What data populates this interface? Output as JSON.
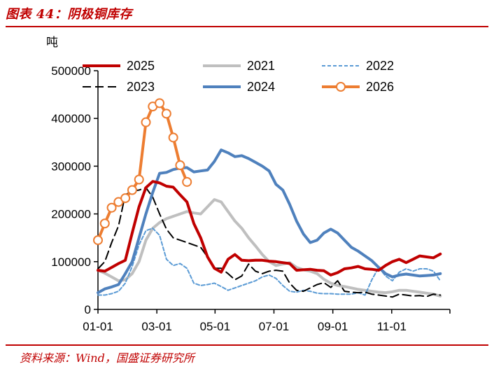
{
  "figure": {
    "title": "图表 44：阴极铜库存",
    "source": "资料来源：Wind，国盛证券研究所"
  },
  "chart_data": {
    "type": "line",
    "title": "阴极铜库存",
    "ylabel": "吨",
    "xlabel": "",
    "ylim": [
      0,
      500000
    ],
    "yticks": [
      0,
      100000,
      200000,
      300000,
      400000,
      500000
    ],
    "ytick_labels": [
      "0",
      "100000",
      "200000",
      "300000",
      "400000",
      "500000"
    ],
    "xlim": [
      0,
      51
    ],
    "xticks": [
      0,
      8.6,
      17.1,
      25.7,
      34.3,
      42.9,
      51.4
    ],
    "xtick_labels": [
      "01-01",
      "03-01",
      "05-01",
      "07-01",
      "09-01",
      "11-01",
      ""
    ],
    "legend_position": "top",
    "series": [
      {
        "name": "2025",
        "color": "#c00000",
        "style": "solid",
        "width": 4,
        "x": [
          0,
          1,
          2,
          3,
          4,
          5,
          6,
          7,
          8,
          9,
          10,
          11,
          12,
          13,
          14,
          15,
          16,
          17,
          18,
          19,
          20,
          21,
          22,
          23,
          24,
          25,
          26,
          27,
          28,
          29,
          30,
          31,
          32,
          33,
          34,
          35,
          36,
          37,
          38,
          39,
          40,
          41,
          42,
          43,
          44,
          45,
          46,
          47,
          48,
          49,
          50
        ],
        "y": [
          82000,
          80000,
          88000,
          96000,
          103000,
          160000,
          215000,
          255000,
          268000,
          265000,
          258000,
          256000,
          240000,
          225000,
          180000,
          150000,
          110000,
          86000,
          78000,
          105000,
          115000,
          103000,
          102000,
          103000,
          103000,
          101000,
          100000,
          98000,
          96000,
          82000,
          83000,
          84000,
          82000,
          81000,
          72000,
          77000,
          85000,
          87000,
          90000,
          85000,
          84000,
          82000,
          92000,
          100000,
          105000,
          98000,
          105000,
          112000,
          110000,
          108000,
          116000
        ]
      },
      {
        "name": "2021",
        "color": "#bfbfbf",
        "style": "solid",
        "width": 4,
        "x": [
          0,
          1,
          2,
          3,
          4,
          5,
          6,
          7,
          8,
          9,
          10,
          11,
          12,
          13,
          14,
          15,
          16,
          17,
          18,
          19,
          20,
          21,
          22,
          23,
          24,
          25,
          26,
          27,
          28,
          29,
          30,
          31,
          32,
          33,
          34,
          35,
          36,
          37,
          38,
          39,
          40,
          41,
          42,
          43,
          44,
          45,
          46,
          47,
          48,
          49,
          50
        ],
        "y": [
          82000,
          76000,
          68000,
          60000,
          62000,
          75000,
          100000,
          145000,
          170000,
          182000,
          190000,
          195000,
          200000,
          205000,
          202000,
          200000,
          215000,
          230000,
          225000,
          205000,
          185000,
          170000,
          150000,
          133000,
          115000,
          100000,
          92000,
          95000,
          98000,
          88000,
          83000,
          80000,
          75000,
          63000,
          55000,
          50000,
          48000,
          45000,
          42000,
          40000,
          38000,
          36000,
          35000,
          37000,
          40000,
          40000,
          38000,
          36000,
          34000,
          32000,
          28000
        ]
      },
      {
        "name": "2022",
        "color": "#5b9bd5",
        "style": "dashed",
        "width": 2,
        "x": [
          0,
          1,
          2,
          3,
          4,
          5,
          6,
          7,
          8,
          9,
          10,
          11,
          12,
          13,
          14,
          15,
          16,
          17,
          18,
          19,
          20,
          21,
          22,
          23,
          24,
          25,
          26,
          27,
          28,
          29,
          30,
          31,
          32,
          33,
          34,
          35,
          36,
          37,
          38,
          39,
          40,
          41,
          42,
          43,
          44,
          45,
          46,
          47,
          48,
          49,
          50
        ],
        "y": [
          30000,
          30000,
          33000,
          38000,
          55000,
          90000,
          135000,
          165000,
          170000,
          155000,
          105000,
          92000,
          96000,
          86000,
          55000,
          50000,
          52000,
          55000,
          48000,
          40000,
          45000,
          50000,
          55000,
          60000,
          68000,
          72000,
          65000,
          50000,
          38000,
          36000,
          40000,
          38000,
          34000,
          33000,
          33000,
          32000,
          32000,
          32000,
          35000,
          30000,
          62000,
          88000,
          70000,
          60000,
          78000,
          85000,
          80000,
          85000,
          85000,
          80000,
          60000
        ]
      },
      {
        "name": "2023",
        "color": "#000000",
        "style": "longdash",
        "width": 2,
        "x": [
          0,
          1,
          2,
          3,
          4,
          5,
          6,
          7,
          8,
          9,
          10,
          11,
          12,
          13,
          14,
          15,
          16,
          17,
          18,
          19,
          20,
          21,
          22,
          23,
          24,
          25,
          26,
          27,
          28,
          29,
          30,
          31,
          32,
          33,
          34,
          35,
          36,
          37,
          38,
          39,
          40,
          41,
          42,
          43,
          44,
          45,
          46,
          47,
          48,
          49,
          50
        ],
        "y": [
          85000,
          100000,
          140000,
          175000,
          240000,
          248000,
          250000,
          255000,
          235000,
          200000,
          168000,
          150000,
          145000,
          140000,
          135000,
          130000,
          110000,
          86000,
          86000,
          75000,
          62000,
          70000,
          95000,
          80000,
          75000,
          80000,
          82000,
          80000,
          55000,
          40000,
          38000,
          45000,
          52000,
          56000,
          46000,
          60000,
          38000,
          36000,
          35000,
          36000,
          32000,
          30000,
          28000,
          26000,
          32000,
          30000,
          28000,
          29000,
          27000,
          32000,
          30000
        ]
      },
      {
        "name": "2024",
        "color": "#4f81bd",
        "style": "solid",
        "width": 4,
        "x": [
          0,
          1,
          2,
          3,
          4,
          5,
          6,
          7,
          8,
          9,
          10,
          11,
          12,
          13,
          14,
          15,
          16,
          17,
          18,
          19,
          20,
          21,
          22,
          23,
          24,
          25,
          26,
          27,
          28,
          29,
          30,
          31,
          32,
          33,
          34,
          35,
          36,
          37,
          38,
          39,
          40,
          41,
          42,
          43,
          44,
          45,
          46,
          47,
          48,
          49,
          50
        ],
        "y": [
          35000,
          43000,
          47000,
          52000,
          75000,
          100000,
          150000,
          200000,
          245000,
          285000,
          287000,
          293000,
          296000,
          297000,
          288000,
          290000,
          292000,
          310000,
          334000,
          328000,
          320000,
          322000,
          316000,
          308000,
          300000,
          290000,
          262000,
          250000,
          220000,
          185000,
          158000,
          140000,
          145000,
          160000,
          168000,
          160000,
          145000,
          130000,
          122000,
          112000,
          102000,
          88000,
          75000,
          68000,
          72000,
          74000,
          72000,
          70000,
          71000,
          72000,
          75000
        ]
      },
      {
        "name": "2026",
        "color": "#ed7d31",
        "style": "solid-markers",
        "width": 4,
        "x": [
          0,
          1,
          2,
          3,
          4,
          5,
          6,
          7,
          8,
          9,
          10,
          11,
          12,
          13
        ],
        "y": [
          145000,
          180000,
          213000,
          225000,
          233000,
          250000,
          272000,
          392000,
          425000,
          432000,
          410000,
          360000,
          302000,
          267000
        ]
      }
    ]
  }
}
